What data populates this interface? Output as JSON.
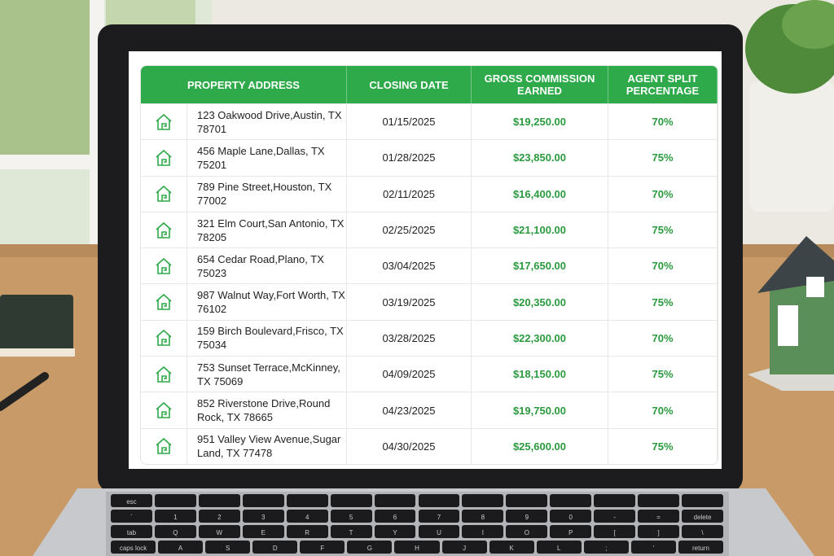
{
  "table": {
    "header": [
      "PROPERTY ADDRESS",
      "CLOSING DATE",
      "GROSS COMMISSION EARNED",
      "AGENT SPLIT PERCENTAGE"
    ],
    "rows": [
      {
        "street": "123 Oakwood Drive,",
        "city": "Austin, TX 78701",
        "date": "01/15/2025",
        "commission": "$19,250.00",
        "split": "70%"
      },
      {
        "street": "456 Maple Lane,",
        "city": "Dallas, TX 75201",
        "date": "01/28/2025",
        "commission": "$23,850.00",
        "split": "75%"
      },
      {
        "street": "789 Pine Street,",
        "city": "Houston, TX 77002",
        "date": "02/11/2025",
        "commission": "$16,400.00",
        "split": "70%"
      },
      {
        "street": "321 Elm Court,",
        "city": "San Antonio, TX 78205",
        "date": "02/25/2025",
        "commission": "$21,100.00",
        "split": "75%"
      },
      {
        "street": "654 Cedar Road,",
        "city": "Plano, TX 75023",
        "date": "03/04/2025",
        "commission": "$17,650.00",
        "split": "70%"
      },
      {
        "street": "987 Walnut Way,",
        "city": "Fort Worth, TX 76102",
        "date": "03/19/2025",
        "commission": "$20,350.00",
        "split": "75%"
      },
      {
        "street": "159 Birch Boulevard,",
        "city": "Frisco, TX 75034",
        "date": "03/28/2025",
        "commission": "$22,300.00",
        "split": "70%"
      },
      {
        "street": "753 Sunset Terrace,",
        "city": "McKinney, TX 75069",
        "date": "04/09/2025",
        "commission": "$18,150.00",
        "split": "75%"
      },
      {
        "street": "852 Riverstone Drive,",
        "city": "Round Rock, TX 78665",
        "date": "04/23/2025",
        "commission": "$19,750.00",
        "split": "70%"
      },
      {
        "street": "951 Valley View Avenue,",
        "city": "Sugar Land, TX 77478",
        "date": "04/30/2025",
        "commission": "$25,600.00",
        "split": "75%"
      }
    ]
  },
  "keyboard": {
    "rows": [
      [
        "esc"
      ],
      [
        "`",
        "1",
        "2",
        "3",
        "4",
        "5",
        "6",
        "7",
        "8",
        "9",
        "0",
        "-",
        "=",
        "delete"
      ],
      [
        "tab",
        "Q",
        "W",
        "E",
        "R",
        "T",
        "Y",
        "U",
        "I",
        "O",
        "P",
        "[",
        "]",
        "\\"
      ],
      [
        "caps lock",
        "A",
        "S",
        "D",
        "F",
        "G",
        "H",
        "J",
        "K",
        "L",
        ";",
        "'",
        "return"
      ]
    ]
  }
}
